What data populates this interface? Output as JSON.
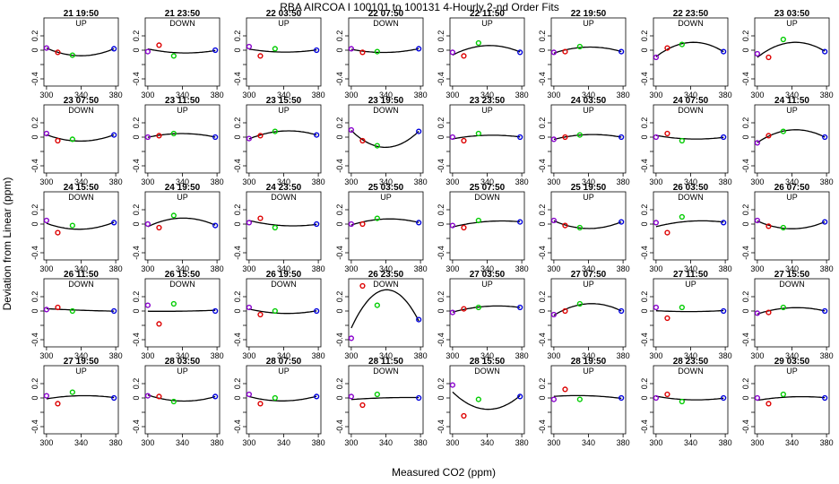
{
  "figure": {
    "title": "RBA   AIRCOA I   100101 to 100131   4-Hourly 2-nd Order Fits",
    "xlabel": "Measured CO2 (ppm)",
    "ylabel": "Deviation from Linear (ppm)"
  },
  "colors": {
    "cal_1": "#8800cc",
    "cal_2": "#dd0000",
    "cal_3": "#00cc00",
    "cal_4": "#0000dd",
    "fit": "#000000"
  },
  "chart_data": {
    "type": "scatter",
    "layout": "8 columns x 5 rows of small multiples",
    "x_ticks": [
      300,
      340,
      380
    ],
    "y_ticks": [
      0.2,
      0,
      -0.2,
      -0.4
    ],
    "y_tick_labels": [
      "0.2",
      "0",
      "-0.4"
    ],
    "xlim": [
      297,
      383
    ],
    "ylim": [
      -0.5,
      0.45
    ],
    "x_standards": [
      300,
      313,
      330,
      378
    ],
    "panels": [
      {
        "title": "21 19:50",
        "status": "UP",
        "y": [
          0.03,
          -0.03,
          -0.07,
          0.02
        ]
      },
      {
        "title": "21 23:50",
        "status": "DOWN",
        "y": [
          -0.02,
          0.07,
          -0.08,
          0
        ]
      },
      {
        "title": "22 03:50",
        "status": "UP",
        "y": [
          0.05,
          -0.08,
          0.02,
          0
        ]
      },
      {
        "title": "22 07:50",
        "status": "DOWN",
        "y": [
          0.02,
          -0.03,
          -0.02,
          0.02
        ]
      },
      {
        "title": "22 11:50",
        "status": "UP",
        "y": [
          -0.03,
          -0.08,
          0.1,
          -0.03
        ]
      },
      {
        "title": "22 19:50",
        "status": "UP",
        "y": [
          -0.03,
          -0.02,
          0.05,
          -0.02
        ]
      },
      {
        "title": "22 23:50",
        "status": "DOWN",
        "y": [
          -0.1,
          0.03,
          0.08,
          -0.02
        ]
      },
      {
        "title": "23 03:50",
        "status": "UP",
        "y": [
          -0.05,
          -0.1,
          0.15,
          -0.02
        ]
      },
      {
        "title": "23 07:50",
        "status": "DOWN",
        "y": [
          0.05,
          -0.05,
          -0.03,
          0.03
        ]
      },
      {
        "title": "23 11:50",
        "status": "UP",
        "y": [
          0,
          0.02,
          0.05,
          0
        ]
      },
      {
        "title": "23 15:50",
        "status": "UP",
        "y": [
          -0.02,
          0.02,
          0.08,
          0.03
        ]
      },
      {
        "title": "23 19:50",
        "status": "DOWN",
        "y": [
          0.1,
          -0.05,
          -0.12,
          0.08
        ]
      },
      {
        "title": "23 23:50",
        "status": "UP",
        "y": [
          0,
          -0.05,
          0.05,
          0
        ]
      },
      {
        "title": "24 03:50",
        "status": "UP",
        "y": [
          -0.03,
          0,
          0.03,
          0
        ]
      },
      {
        "title": "24 07:50",
        "status": "DOWN",
        "y": [
          0,
          0.05,
          -0.05,
          0
        ]
      },
      {
        "title": "24 11:50",
        "status": "UP",
        "y": [
          -0.08,
          0.02,
          0.08,
          0
        ]
      },
      {
        "title": "24 15:50",
        "status": "DOWN",
        "y": [
          0.05,
          -0.12,
          -0.02,
          0.02
        ]
      },
      {
        "title": "24 19:50",
        "status": "UP",
        "y": [
          0,
          -0.05,
          0.12,
          -0.02
        ]
      },
      {
        "title": "24 23:50",
        "status": "DOWN",
        "y": [
          0.02,
          0.08,
          -0.05,
          0
        ]
      },
      {
        "title": "25 03:50",
        "status": "UP",
        "y": [
          0,
          0,
          0.08,
          0.02
        ]
      },
      {
        "title": "25 07:50",
        "status": "DOWN",
        "y": [
          -0.02,
          -0.05,
          0.05,
          0.03
        ]
      },
      {
        "title": "25 19:50",
        "status": "UP",
        "y": [
          0.05,
          -0.02,
          -0.05,
          0.03
        ]
      },
      {
        "title": "26 03:50",
        "status": "DOWN",
        "y": [
          0.02,
          -0.12,
          0.1,
          0.02
        ]
      },
      {
        "title": "26 07:50",
        "status": "UP",
        "y": [
          0.05,
          -0.03,
          -0.05,
          0.03
        ]
      },
      {
        "title": "26 11:50",
        "status": "DOWN",
        "y": [
          0.02,
          0.05,
          0,
          0
        ]
      },
      {
        "title": "26 15:50",
        "status": "DOWN",
        "y": [
          0.08,
          -0.18,
          0.1,
          0
        ]
      },
      {
        "title": "26 19:50",
        "status": "DOWN",
        "y": [
          0.05,
          -0.05,
          0,
          0
        ]
      },
      {
        "title": "26 23:50",
        "status": "DOWN",
        "y": [
          -0.38,
          0.35,
          0.08,
          -0.12
        ]
      },
      {
        "title": "27 03:50",
        "status": "UP",
        "y": [
          -0.02,
          0.03,
          0.05,
          0.05
        ]
      },
      {
        "title": "27 07:50",
        "status": "UP",
        "y": [
          -0.05,
          0,
          0.1,
          0
        ]
      },
      {
        "title": "27 11:50",
        "status": "UP",
        "y": [
          0.05,
          -0.1,
          0.05,
          0
        ]
      },
      {
        "title": "27 15:50",
        "status": "DOWN",
        "y": [
          -0.03,
          -0.02,
          0.05,
          0
        ]
      },
      {
        "title": "27 19:50",
        "status": "UP",
        "y": [
          0.03,
          -0.08,
          0.08,
          0
        ]
      },
      {
        "title": "28 03:50",
        "status": "UP",
        "y": [
          0.03,
          0.02,
          -0.05,
          0.02
        ]
      },
      {
        "title": "28 07:50",
        "status": "UP",
        "y": [
          0.05,
          -0.08,
          0,
          0.02
        ]
      },
      {
        "title": "28 11:50",
        "status": "DOWN",
        "y": [
          0.02,
          -0.1,
          0.05,
          0
        ]
      },
      {
        "title": "28 15:50",
        "status": "DOWN",
        "y": [
          0.18,
          -0.25,
          -0.02,
          0.02
        ]
      },
      {
        "title": "28 19:50",
        "status": "UP",
        "y": [
          -0.02,
          0.12,
          -0.02,
          0
        ]
      },
      {
        "title": "28 23:50",
        "status": "DOWN",
        "y": [
          0,
          0.05,
          -0.05,
          0
        ]
      },
      {
        "title": "29 03:50",
        "status": "UP",
        "y": [
          0,
          -0.08,
          0.05,
          0
        ]
      }
    ]
  }
}
